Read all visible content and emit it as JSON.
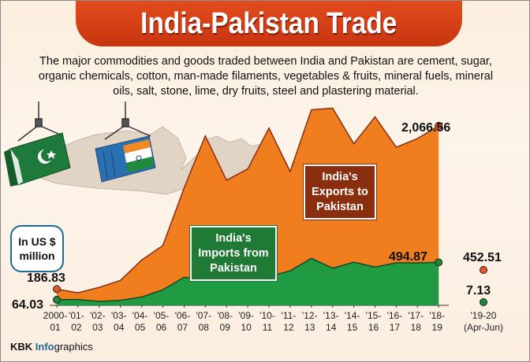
{
  "title": "India-Pakistan Trade",
  "description": "The major commodities and goods traded between India and Pakistan are cement, sugar, organic chemicals, cotton, man-made filaments, vegetables & fruits, mineral fuels, mineral oils, salt, stone, lime, dry fruits, steel and plastering material.",
  "unit_label": "In US $\nmillion",
  "exports_label": "India's\nExports to\nPakistan",
  "imports_label": "India's\nImports from\nPakistan",
  "credit": {
    "brand": "KBK",
    "info": "Info",
    "graphics": "graphics"
  },
  "colors": {
    "exports": "#f07d1e",
    "imports": "#219a44",
    "title": "#d9401a",
    "accent_blue": "#1f6a96"
  },
  "chart_data": {
    "type": "area",
    "title": "India-Pakistan Trade",
    "ylabel": "In US $ million",
    "ylim": [
      0,
      2600
    ],
    "x": [
      "2000-\n01",
      "'01-\n02",
      "'02-\n03",
      "'03-\n04",
      "'04-\n05",
      "'05-\n06",
      "'06-\n07",
      "'07-\n08",
      "'08-\n09",
      "'09-\n10",
      "'10-\n11",
      "'11-\n12",
      "'12-\n13",
      "'13-\n14",
      "'14-\n15",
      "'15-\n16",
      "'16-\n17",
      "'17-\n18",
      "'18-\n19"
    ],
    "series": [
      {
        "name": "India's Exports to Pakistan",
        "values": [
          186.83,
          144,
          207,
          287,
          521,
          689,
          1350,
          1950,
          1440,
          1570,
          2040,
          1540,
          2250,
          2270,
          1860,
          2170,
          1820,
          1920,
          2066.56
        ]
      },
      {
        "name": "India's Imports from Pakistan",
        "values": [
          64.03,
          67,
          45,
          58,
          95,
          179,
          324,
          288,
          370,
          275,
          332,
          397,
          541,
          427,
          497,
          441,
          489,
          488,
          494.87
        ]
      }
    ],
    "extra_period": {
      "label": "'19-20\n(Apr-Jun)",
      "exports": 452.51,
      "imports": 7.13
    },
    "annotations": {
      "exports_first": "186.83",
      "imports_first": "64.03",
      "exports_last": "2,066.56",
      "imports_last": "494.87",
      "exports_extra": "452.51",
      "imports_extra": "7.13"
    },
    "grid": false
  }
}
